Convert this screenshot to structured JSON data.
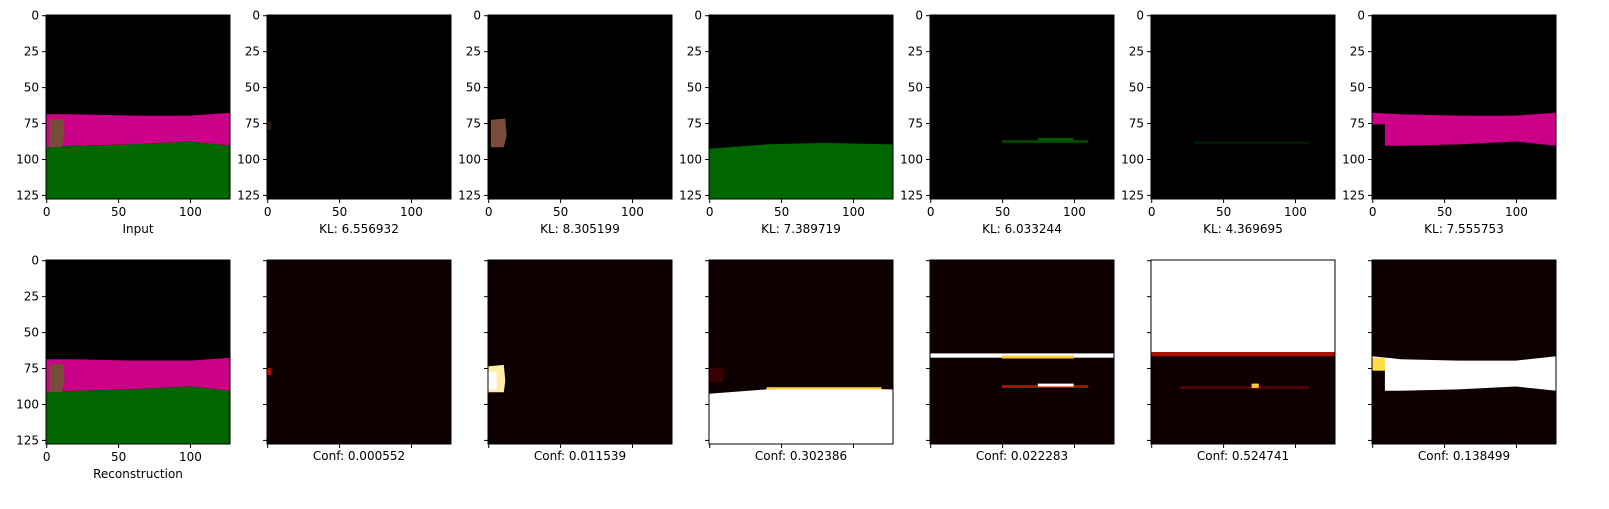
{
  "chart_data": {
    "type": "image-grid",
    "image_size": 128,
    "x_ticks": [
      0,
      50,
      100
    ],
    "y_ticks": [
      0,
      25,
      50,
      75,
      100,
      125
    ],
    "colors": {
      "background": "#000000",
      "pink": "#cc0088",
      "green": "#006600",
      "brown": "#7a4a3a",
      "heat_low": "#0e0000",
      "heat_high": "#ffffff",
      "heat_mid": "#ffcc33",
      "heat_red": "#aa1100"
    },
    "top_row": [
      {
        "kind": "input",
        "caption": "Input"
      },
      {
        "kind": "channel-brown-small",
        "caption": "KL: 6.556932"
      },
      {
        "kind": "channel-brown",
        "caption": "KL: 8.305199"
      },
      {
        "kind": "channel-green",
        "caption": "KL: 7.389719"
      },
      {
        "kind": "channel-green-line",
        "caption": "KL: 6.033244"
      },
      {
        "kind": "channel-green-faint",
        "caption": "KL: 4.369695"
      },
      {
        "kind": "channel-pink",
        "caption": "KL: 7.555753"
      }
    ],
    "bottom_row": [
      {
        "kind": "input",
        "caption": "Reconstruction"
      },
      {
        "kind": "conf-dot",
        "caption": "Conf: 0.000552"
      },
      {
        "kind": "conf-block",
        "caption": "Conf: 0.011539"
      },
      {
        "kind": "conf-green",
        "caption": "Conf: 0.302386"
      },
      {
        "kind": "conf-lines",
        "caption": "Conf: 0.022283"
      },
      {
        "kind": "conf-top",
        "caption": "Conf: 0.524741"
      },
      {
        "kind": "conf-pink",
        "caption": "Conf: 0.138499"
      }
    ]
  }
}
